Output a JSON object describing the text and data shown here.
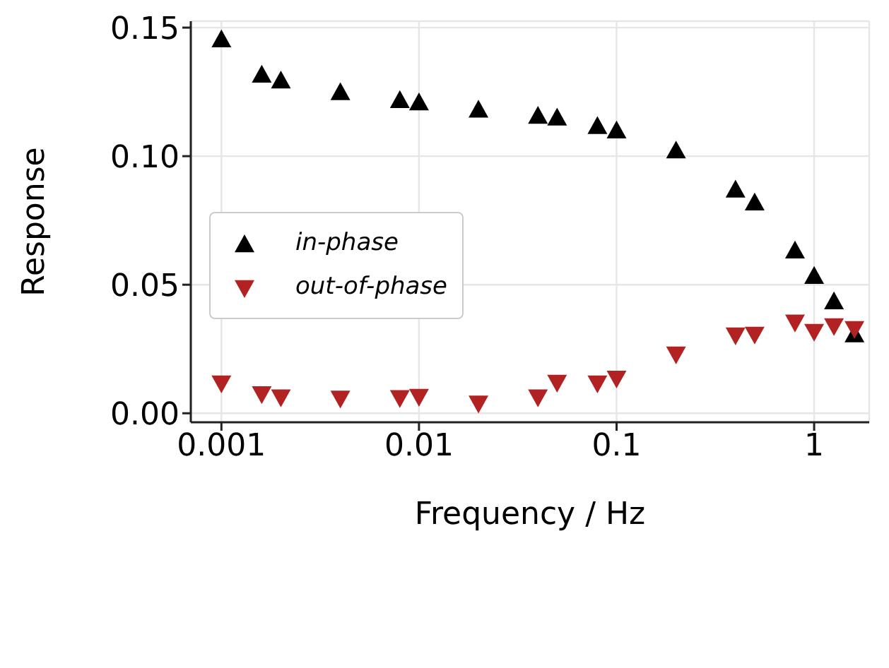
{
  "chart_data": {
    "type": "scatter",
    "xlabel": "Frequency / Hz",
    "ylabel": "Response",
    "log": "x",
    "x": [
      0.001,
      0.0016,
      0.002,
      0.004,
      0.008,
      0.01,
      0.02,
      0.04,
      0.05,
      0.08,
      0.1,
      0.2,
      0.4,
      0.5,
      0.8,
      1,
      1.26,
      1.6
    ],
    "series": [
      {
        "name": "in-phase",
        "color": "#000000",
        "marker": "triangle",
        "values": [
          0.1454,
          0.1317,
          0.1294,
          0.1249,
          0.1218,
          0.1209,
          0.1181,
          0.1157,
          0.115,
          0.1117,
          0.11,
          0.1022,
          0.087,
          0.082,
          0.0633,
          0.0534,
          0.0435,
          0.0307
        ]
      },
      {
        "name": "out-of-phase",
        "color": "#b22222",
        "marker": "triangle-down",
        "values": [
          0.0116,
          0.0074,
          0.0062,
          0.0057,
          0.0059,
          0.0064,
          0.0038,
          0.0062,
          0.0119,
          0.0116,
          0.0135,
          0.0229,
          0.0303,
          0.0306,
          0.0353,
          0.0317,
          0.0339,
          0.0328
        ]
      }
    ],
    "xlim": [
      0.0007,
      1.9
    ],
    "xticks": [
      0.001,
      0.01,
      0.1,
      1
    ],
    "ylim": [
      -0.0035,
      0.1525
    ],
    "yticks": [
      {
        "value": 0,
        "label": "0.00"
      },
      {
        "value": 0.05,
        "label": "0.05"
      },
      {
        "value": 0.1,
        "label": "0.10"
      },
      {
        "value": 0.15,
        "label": "0.15"
      }
    ],
    "grid": true,
    "legend": "left"
  }
}
